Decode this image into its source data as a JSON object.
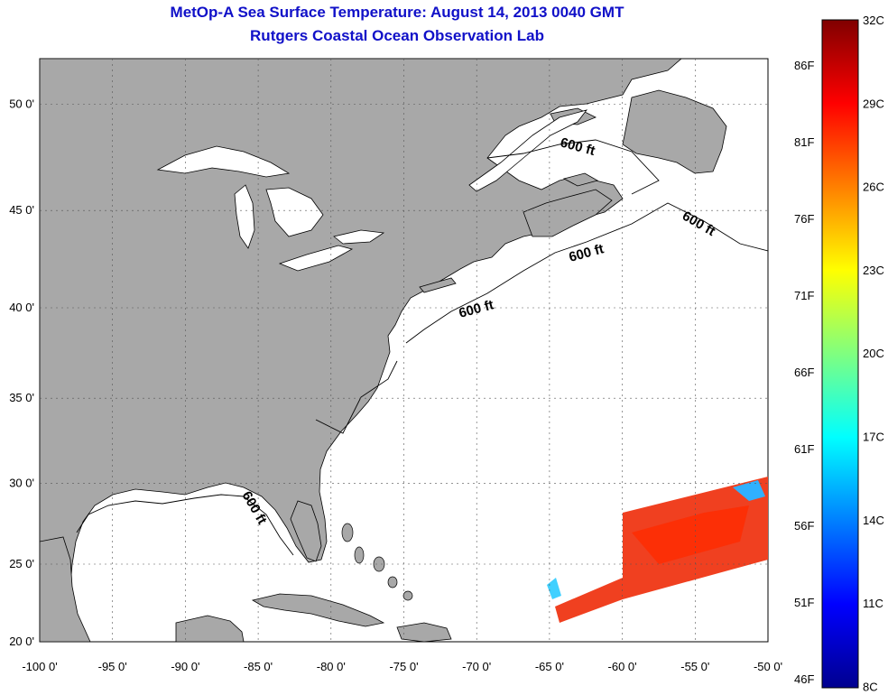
{
  "title_line1": "MetOp-A Sea Surface Temperature:  August 14, 2013 0040 GMT",
  "title_line2": "Rutgers Coastal Ocean Observation Lab",
  "lon_ticks": [
    "-100 0'",
    "-95 0'",
    "-90 0'",
    "-85 0'",
    "-80 0'",
    "-75 0'",
    "-70 0'",
    "-65 0'",
    "-60 0'",
    "-55 0'",
    "-50 0'"
  ],
  "lat_ticks": [
    "50 0'",
    "45 0'",
    "40 0'",
    "35 0'",
    "30 0'",
    "25 0'",
    "20 0'"
  ],
  "depth_label": "600 ft",
  "colorbar": {
    "f_labels": [
      "86F",
      "81F",
      "76F",
      "71F",
      "66F",
      "61F",
      "56F",
      "51F",
      "46F"
    ],
    "c_labels": [
      "32C",
      "29C",
      "26C",
      "23C",
      "20C",
      "17C",
      "14C",
      "11C",
      "8C"
    ]
  },
  "colors": {
    "land": "#a8a8a8",
    "ocean": "#ffffff",
    "title": "#1010c8",
    "grid": "#555555"
  },
  "map_extent": {
    "lon_min": -100,
    "lon_max": -50,
    "lat_min": 20,
    "lat_max": 52
  }
}
